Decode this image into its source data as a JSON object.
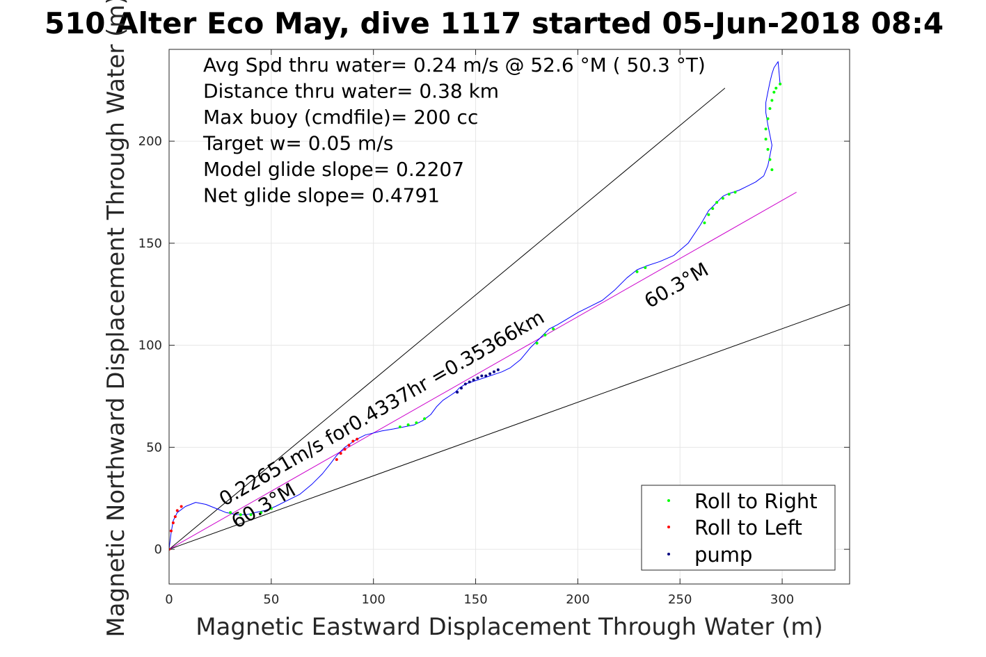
{
  "chart_data": {
    "type": "scatter",
    "title": "510 Alter Eco May, dive 1117 started 05-Jun-2018 08:4",
    "xlabel": "Magnetic Eastward Displacement Through Water (m)",
    "ylabel": "Magnetic Northward Displacement Through Water (m)",
    "xlim": [
      0,
      333
    ],
    "ylim": [
      -17,
      245
    ],
    "xticks": [
      0,
      50,
      100,
      150,
      200,
      250,
      300
    ],
    "yticks": [
      0,
      50,
      100,
      150,
      200
    ],
    "grid": true,
    "legend_position": "bottom-right",
    "stats": [
      "Avg Spd thru water=  0.24 m/s @  52.6 °M ( 50.3 °T)",
      "Distance thru water=  0.38 km",
      "Max buoy (cmdfile)= 200 cc",
      "Target w= 0.05 m/s",
      "Model glide slope= 0.2207",
      "Net glide slope= 0.4791"
    ],
    "annotations": [
      {
        "text": "0.22651m/s for0.4337hr =0.35366km",
        "x": 27,
        "y": 21,
        "angle": 30
      },
      {
        "text": "60.3°M",
        "x": 33,
        "y": 10,
        "angle": 30
      },
      {
        "text": "60.3°M",
        "x": 235,
        "y": 118,
        "angle": 30
      }
    ],
    "series": [
      {
        "name": "track",
        "kind": "line",
        "color": "#0000ff",
        "x": [
          0,
          1,
          2,
          4,
          8,
          13,
          18,
          23,
          28,
          33,
          38,
          42,
          47,
          52,
          58,
          64,
          70,
          75,
          79,
          82,
          84,
          86,
          89,
          92,
          96,
          100,
          104,
          110,
          115,
          120,
          124,
          128,
          131,
          134,
          137,
          140,
          142,
          145,
          148,
          151,
          154,
          157,
          160,
          163,
          167,
          172,
          177,
          182,
          186,
          190,
          195,
          200,
          206,
          212,
          218,
          224,
          229,
          234,
          240,
          247,
          254,
          260,
          264,
          267,
          269,
          271,
          273,
          276,
          279,
          283,
          287,
          291,
          293,
          294,
          295,
          294,
          293,
          292,
          292,
          293,
          294,
          295,
          296,
          298,
          299
        ],
        "y": [
          0,
          8,
          14,
          18,
          21,
          23,
          22,
          20,
          18,
          17,
          17,
          18,
          19,
          21,
          24,
          27,
          32,
          37,
          42,
          46,
          48,
          50,
          52,
          54,
          56,
          57,
          58,
          59,
          60,
          61,
          63,
          66,
          70,
          73,
          75,
          77,
          79,
          81,
          82,
          83,
          84,
          85,
          86,
          87,
          89,
          93,
          99,
          104,
          108,
          110,
          113,
          116,
          119,
          122,
          127,
          133,
          137,
          139,
          141,
          144,
          150,
          159,
          166,
          169,
          171,
          173,
          174,
          175,
          176,
          178,
          180,
          183,
          188,
          193,
          198,
          203,
          208,
          214,
          219,
          224,
          229,
          233,
          236,
          239,
          228
        ]
      },
      {
        "name": "Roll to Right",
        "kind": "points",
        "color": "#00ff00",
        "x": [
          30,
          35,
          40,
          45,
          50,
          113,
          117,
          121,
          125,
          180,
          184,
          188,
          229,
          233,
          262,
          264,
          266,
          268,
          271,
          274,
          277,
          295,
          294,
          293,
          292,
          292,
          293,
          294,
          295,
          296,
          297,
          299
        ],
        "y": [
          18,
          17,
          17,
          18,
          20,
          60,
          61,
          62,
          64,
          101,
          105,
          108,
          136,
          138,
          160,
          164,
          167,
          170,
          172,
          174,
          175,
          186,
          191,
          196,
          201,
          206,
          211,
          216,
          220,
          224,
          226,
          228
        ]
      },
      {
        "name": "Roll to Left",
        "kind": "points",
        "color": "#ff0000",
        "x": [
          0,
          1,
          2,
          3,
          4,
          6,
          82,
          84,
          86,
          88,
          90,
          92
        ],
        "y": [
          0,
          9,
          13,
          16,
          19,
          21,
          44,
          47,
          49,
          51,
          53,
          54
        ]
      },
      {
        "name": "pump",
        "kind": "points",
        "color": "#000080",
        "x": [
          141,
          143,
          145,
          147,
          149,
          151,
          153,
          155,
          157,
          159,
          161
        ],
        "y": [
          77,
          79,
          81,
          82,
          83,
          84,
          85,
          85,
          86,
          87,
          88
        ]
      }
    ],
    "reference_lines": [
      {
        "name": "glide-upper",
        "color": "#000000",
        "x": [
          0,
          272
        ],
        "y": [
          0,
          226
        ]
      },
      {
        "name": "glide-lower",
        "color": "#000000",
        "x": [
          0,
          333
        ],
        "y": [
          0,
          120
        ]
      },
      {
        "name": "heading-line",
        "color": "#cc00cc",
        "x": [
          0,
          307
        ],
        "y": [
          0,
          175
        ]
      }
    ]
  }
}
